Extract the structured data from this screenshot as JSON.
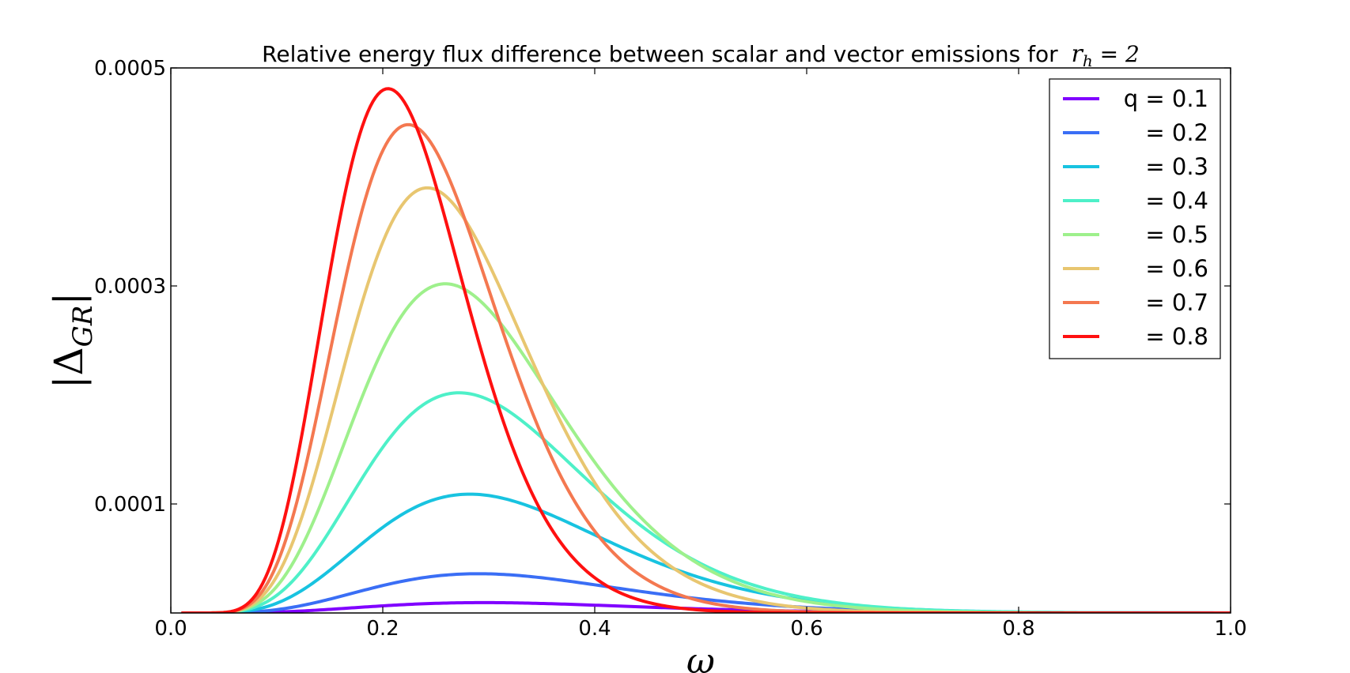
{
  "chart_data": {
    "type": "line",
    "title": "Relative energy flux difference between scalar and vector emissions for",
    "title_math": "r",
    "title_math_sub": "h",
    "title_math_tail": " = 2",
    "xlabel": "ω",
    "ylabel_symbol": "Δ",
    "ylabel_sub": "GR",
    "xlim": [
      0.0,
      1.0
    ],
    "ylim": [
      0.0,
      0.0005
    ],
    "xticks": [
      0.0,
      0.2,
      0.4,
      0.6,
      0.8,
      1.0
    ],
    "xtick_labels": [
      "0.0",
      "0.2",
      "0.4",
      "0.6",
      "0.8",
      "1.0"
    ],
    "yticks": [
      0.0001,
      0.0003,
      0.0005
    ],
    "ytick_labels": [
      "0.0001",
      "0.0003",
      "0.0005"
    ],
    "legend_position": "top-right",
    "series": [
      {
        "name": "q = 0.1",
        "color": "#8000ff",
        "peak_x": 0.295,
        "peak_y": 9.5e-06
      },
      {
        "name": "= 0.2",
        "color": "#3a6ef5",
        "peak_x": 0.29,
        "peak_y": 3.6e-05
      },
      {
        "name": "= 0.3",
        "color": "#18c3e0",
        "peak_x": 0.282,
        "peak_y": 0.000109
      },
      {
        "name": "= 0.4",
        "color": "#4ef0c8",
        "peak_x": 0.272,
        "peak_y": 0.000202
      },
      {
        "name": "= 0.5",
        "color": "#9ef08c",
        "peak_x": 0.259,
        "peak_y": 0.000302
      },
      {
        "name": "= 0.6",
        "color": "#e8c670",
        "peak_x": 0.242,
        "peak_y": 0.00039
      },
      {
        "name": "= 0.7",
        "color": "#f47850",
        "peak_x": 0.224,
        "peak_y": 0.000448
      },
      {
        "name": "= 0.8",
        "color": "#ff1010",
        "peak_x": 0.205,
        "peak_y": 0.000481
      }
    ]
  }
}
